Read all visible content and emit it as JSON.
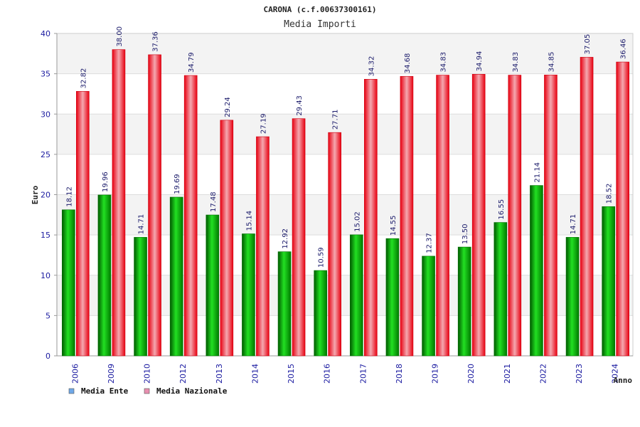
{
  "chart_data": {
    "type": "bar",
    "title": "CARONA (c.f.00637300161)",
    "subtitle": "Media Importi",
    "xlabel": "Anno",
    "ylabel": "Euro",
    "ylim": [
      0,
      40
    ],
    "yticks": [
      0,
      5,
      10,
      15,
      20,
      25,
      30,
      35,
      40
    ],
    "grid": "horizontal alternating bands",
    "legend_position": "bottom-left",
    "categories": [
      "2006",
      "2009",
      "2010",
      "2012",
      "2013",
      "2014",
      "2015",
      "2016",
      "2017",
      "2018",
      "2019",
      "2020",
      "2021",
      "2022",
      "2023",
      "2024"
    ],
    "series": [
      {
        "name": "Media Ente",
        "color": "#00b400",
        "legend_color": "#6fa8e8",
        "values": [
          18.12,
          19.96,
          14.71,
          19.69,
          17.48,
          15.14,
          12.92,
          10.59,
          15.02,
          14.55,
          12.37,
          13.5,
          16.55,
          21.14,
          14.71,
          18.52
        ],
        "labels": [
          "18.12",
          "19.96",
          "14.71",
          "19.69",
          "17.48",
          "15.14",
          "12.92",
          "10.59",
          "15.02",
          "14.55",
          "12.37",
          "13.50",
          "16.55",
          "21.14",
          "14.71",
          "18.52"
        ]
      },
      {
        "name": "Media Nazionale",
        "color": "#ee1111",
        "legend_color": "#e88fb0",
        "values": [
          32.82,
          38.0,
          37.36,
          34.79,
          29.24,
          27.19,
          29.43,
          27.71,
          34.32,
          34.68,
          34.83,
          34.94,
          34.83,
          34.85,
          37.05,
          36.46
        ],
        "labels": [
          "32.82",
          "38.00",
          "37.36",
          "34.79",
          "29.24",
          "27.19",
          "29.43",
          "27.71",
          "34.32",
          "34.68",
          "34.83",
          "34.94",
          "34.83",
          "34.85",
          "37.05",
          "36.46"
        ]
      }
    ]
  }
}
